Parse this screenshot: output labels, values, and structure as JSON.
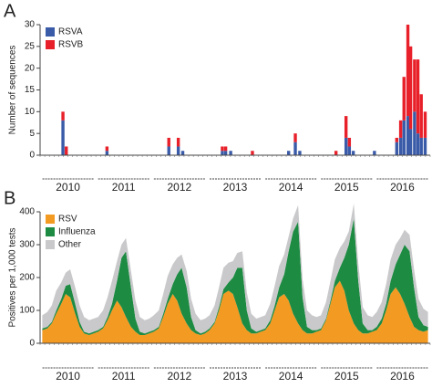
{
  "chart_data": [
    {
      "type": "bar",
      "stacked": true,
      "panel_label": "A",
      "y_label": "Number of sequences",
      "x": [
        2010.41,
        2010.47,
        2011.2,
        2012.31,
        2012.48,
        2012.56,
        2013.27,
        2013.33,
        2013.42,
        2013.81,
        2014.46,
        2014.58,
        2014.66,
        2015.31,
        2015.49,
        2015.55,
        2015.62,
        2016.0,
        2016.4,
        2016.47,
        2016.53,
        2016.6,
        2016.65,
        2016.72,
        2016.78,
        2016.84,
        2016.91
      ],
      "series": [
        {
          "name": "RSVA",
          "color": "#3a5ba8",
          "values": [
            8,
            0,
            1,
            2,
            2,
            1,
            1,
            1,
            1,
            0,
            1,
            3,
            1,
            0,
            4,
            2,
            1,
            1,
            3,
            4,
            8,
            9,
            6,
            10,
            5,
            4,
            4
          ]
        },
        {
          "name": "RSVB",
          "color": "#e8202a",
          "values": [
            2,
            2,
            1,
            2,
            2,
            0,
            1,
            1,
            0,
            1,
            0,
            2,
            0,
            1,
            5,
            2,
            0,
            0,
            1,
            4,
            10,
            21,
            19,
            12,
            17,
            10,
            6
          ]
        }
      ],
      "xlim": [
        2010,
        2017
      ],
      "xticks": [
        {
          "value": 2010.5,
          "label": "2010"
        },
        {
          "value": 2011.5,
          "label": "2011"
        },
        {
          "value": 2012.5,
          "label": "2012"
        },
        {
          "value": 2013.5,
          "label": "2013"
        },
        {
          "value": 2014.5,
          "label": "2014"
        },
        {
          "value": 2015.5,
          "label": "2015"
        },
        {
          "value": 2016.5,
          "label": "2016"
        }
      ],
      "ylim": [
        0,
        30
      ],
      "yticks": [
        0,
        5,
        10,
        15,
        20,
        25,
        30
      ],
      "legend": "upper left"
    },
    {
      "type": "area",
      "stacked": true,
      "panel_label": "B",
      "y_label": "Positives per 1,000 tests",
      "x": [
        2010.04,
        2010.13,
        2010.21,
        2010.29,
        2010.38,
        2010.46,
        2010.54,
        2010.63,
        2010.71,
        2010.79,
        2010.88,
        2010.96,
        2011.04,
        2011.13,
        2011.21,
        2011.29,
        2011.38,
        2011.46,
        2011.54,
        2011.63,
        2011.71,
        2011.79,
        2011.88,
        2011.96,
        2012.04,
        2012.13,
        2012.21,
        2012.29,
        2012.38,
        2012.46,
        2012.54,
        2012.63,
        2012.71,
        2012.79,
        2012.88,
        2012.96,
        2013.04,
        2013.13,
        2013.21,
        2013.29,
        2013.38,
        2013.46,
        2013.54,
        2013.63,
        2013.71,
        2013.79,
        2013.88,
        2013.96,
        2014.04,
        2014.13,
        2014.21,
        2014.29,
        2014.38,
        2014.46,
        2014.54,
        2014.63,
        2014.71,
        2014.79,
        2014.88,
        2014.96,
        2015.04,
        2015.13,
        2015.21,
        2015.29,
        2015.38,
        2015.46,
        2015.54,
        2015.63,
        2015.71,
        2015.79,
        2015.88,
        2015.96,
        2016.04,
        2016.13,
        2016.21,
        2016.29,
        2016.38,
        2016.46,
        2016.54,
        2016.63,
        2016.71,
        2016.79,
        2016.88,
        2016.96
      ],
      "series": [
        {
          "name": "RSV",
          "color": "#f39a22",
          "values": [
            40,
            45,
            60,
            90,
            120,
            150,
            140,
            90,
            50,
            30,
            25,
            30,
            35,
            45,
            70,
            100,
            130,
            110,
            80,
            50,
            35,
            25,
            25,
            30,
            35,
            45,
            80,
            120,
            150,
            130,
            90,
            60,
            40,
            30,
            25,
            30,
            40,
            60,
            100,
            150,
            160,
            150,
            110,
            60,
            40,
            30,
            30,
            35,
            40,
            60,
            100,
            140,
            150,
            130,
            90,
            60,
            40,
            30,
            30,
            35,
            40,
            70,
            120,
            170,
            190,
            160,
            100,
            60,
            40,
            30,
            30,
            35,
            40,
            60,
            100,
            150,
            170,
            150,
            120,
            80,
            50,
            40,
            35,
            40
          ]
        },
        {
          "name": "Influenza",
          "color": "#1e8b43",
          "values": [
            5,
            5,
            5,
            10,
            15,
            25,
            40,
            30,
            15,
            5,
            5,
            5,
            5,
            5,
            10,
            20,
            60,
            150,
            200,
            120,
            40,
            10,
            5,
            5,
            5,
            5,
            10,
            15,
            30,
            80,
            140,
            110,
            40,
            10,
            5,
            5,
            5,
            5,
            10,
            15,
            25,
            50,
            120,
            170,
            60,
            15,
            5,
            5,
            5,
            10,
            15,
            30,
            60,
            150,
            250,
            310,
            100,
            20,
            10,
            5,
            5,
            5,
            10,
            20,
            40,
            100,
            200,
            320,
            150,
            30,
            10,
            5,
            10,
            15,
            20,
            40,
            70,
            120,
            180,
            200,
            120,
            40,
            20,
            10
          ]
        },
        {
          "name": "Other",
          "color": "#c9c9cb",
          "values": [
            40,
            45,
            50,
            60,
            50,
            40,
            45,
            50,
            50,
            45,
            40,
            40,
            40,
            50,
            60,
            70,
            60,
            40,
            40,
            50,
            55,
            45,
            40,
            40,
            45,
            50,
            60,
            70,
            60,
            50,
            40,
            50,
            55,
            50,
            40,
            40,
            40,
            50,
            60,
            65,
            60,
            50,
            45,
            50,
            55,
            45,
            40,
            40,
            40,
            50,
            60,
            65,
            60,
            45,
            40,
            50,
            55,
            50,
            45,
            40,
            40,
            50,
            60,
            65,
            60,
            50,
            40,
            45,
            55,
            50,
            45,
            40,
            45,
            50,
            60,
            65,
            60,
            50,
            45,
            50,
            55,
            55,
            50,
            45
          ]
        }
      ],
      "xlim": [
        2010,
        2017
      ],
      "xticks": [
        {
          "value": 2010.5,
          "label": "2010"
        },
        {
          "value": 2011.5,
          "label": "2011"
        },
        {
          "value": 2012.5,
          "label": "2012"
        },
        {
          "value": 2013.5,
          "label": "2013"
        },
        {
          "value": 2014.5,
          "label": "2014"
        },
        {
          "value": 2015.5,
          "label": "2015"
        },
        {
          "value": 2016.5,
          "label": "2016"
        }
      ],
      "ylim": [
        0,
        400
      ],
      "yticks": [
        0,
        100,
        200,
        300,
        400
      ],
      "legend": "upper left"
    }
  ]
}
